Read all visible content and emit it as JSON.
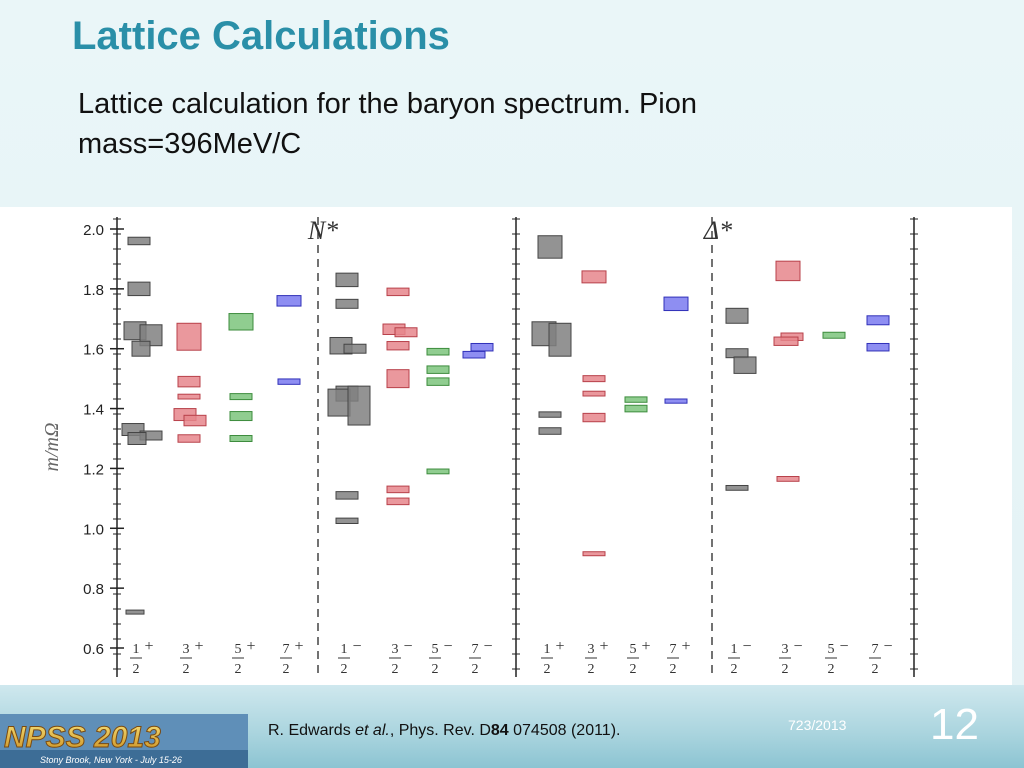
{
  "slide": {
    "title": "Lattice Calculations",
    "subtitle": "Lattice calculation for the baryon spectrum. Pion mass=396MeV/C",
    "citation_author": "R. Edwards ",
    "citation_etal": "et al.",
    "citation_journal": ", Phys. Rev. D",
    "citation_volume": "84",
    "citation_rest": " 074508 (2011).",
    "date": "723/2013",
    "number": "12",
    "logo_text": "NPSS 2013",
    "logo_sub": "Stony Brook, New York - July 15-26"
  },
  "chart_data": {
    "type": "bar",
    "ylabel": "m/mΩ",
    "ylim": [
      0.6,
      2.05
    ],
    "yticks": [
      "0.6",
      "0.8",
      "1.0",
      "1.2",
      "1.4",
      "1.6",
      "1.8",
      "2.0"
    ],
    "panel_labels": [
      "N*",
      "Δ*"
    ],
    "colors": {
      "gray": "#808080",
      "red": "#e6868c",
      "green": "#7cc47c",
      "blue": "#7a7af0"
    },
    "categories": [
      {
        "num": "1",
        "den": "2",
        "sign": "+"
      },
      {
        "num": "3",
        "den": "2",
        "sign": "+"
      },
      {
        "num": "5",
        "den": "2",
        "sign": "+"
      },
      {
        "num": "7",
        "den": "2",
        "sign": "+"
      },
      {
        "num": "1",
        "den": "2",
        "sign": "−"
      },
      {
        "num": "3",
        "den": "2",
        "sign": "−"
      },
      {
        "num": "5",
        "den": "2",
        "sign": "−"
      },
      {
        "num": "7",
        "den": "2",
        "sign": "−"
      },
      {
        "num": "1",
        "den": "2",
        "sign": "+"
      },
      {
        "num": "3",
        "den": "2",
        "sign": "+"
      },
      {
        "num": "5",
        "den": "2",
        "sign": "+"
      },
      {
        "num": "7",
        "den": "2",
        "sign": "+"
      },
      {
        "num": "1",
        "den": "2",
        "sign": "−"
      },
      {
        "num": "3",
        "den": "2",
        "sign": "−"
      },
      {
        "num": "5",
        "den": "2",
        "sign": "−"
      },
      {
        "num": "7",
        "den": "2",
        "sign": "−"
      }
    ],
    "levels": [
      {
        "c": 0,
        "y": 1.96,
        "h": 0.025,
        "w": 22,
        "dx": 0,
        "col": "gray"
      },
      {
        "c": 0,
        "y": 1.8,
        "h": 0.045,
        "w": 22,
        "dx": 0,
        "col": "gray"
      },
      {
        "c": 0,
        "y": 1.66,
        "h": 0.06,
        "w": 22,
        "dx": -4,
        "col": "gray"
      },
      {
        "c": 0,
        "y": 1.645,
        "h": 0.07,
        "w": 22,
        "dx": 12,
        "col": "gray"
      },
      {
        "c": 0,
        "y": 1.6,
        "h": 0.05,
        "w": 18,
        "dx": 2,
        "col": "gray"
      },
      {
        "c": 0,
        "y": 1.33,
        "h": 0.04,
        "w": 22,
        "dx": -6,
        "col": "gray"
      },
      {
        "c": 0,
        "y": 1.31,
        "h": 0.03,
        "w": 22,
        "dx": 12,
        "col": "gray"
      },
      {
        "c": 0,
        "y": 1.3,
        "h": 0.04,
        "w": 18,
        "dx": -2,
        "col": "gray"
      },
      {
        "c": 0,
        "y": 0.72,
        "h": 0.007,
        "w": 18,
        "dx": -4,
        "col": "gray"
      },
      {
        "c": 1,
        "y": 1.64,
        "h": 0.09,
        "w": 24,
        "dx": 0,
        "col": "red"
      },
      {
        "c": 1,
        "y": 1.49,
        "h": 0.035,
        "w": 22,
        "dx": 0,
        "col": "red"
      },
      {
        "c": 1,
        "y": 1.44,
        "h": 0.016,
        "w": 22,
        "dx": 0,
        "col": "red"
      },
      {
        "c": 1,
        "y": 1.38,
        "h": 0.04,
        "w": 22,
        "dx": -4,
        "col": "red"
      },
      {
        "c": 1,
        "y": 1.36,
        "h": 0.035,
        "w": 22,
        "dx": 6,
        "col": "red"
      },
      {
        "c": 1,
        "y": 1.3,
        "h": 0.025,
        "w": 22,
        "dx": 0,
        "col": "red"
      },
      {
        "c": 2,
        "y": 1.69,
        "h": 0.055,
        "w": 24,
        "dx": 0,
        "col": "green"
      },
      {
        "c": 2,
        "y": 1.44,
        "h": 0.02,
        "w": 22,
        "dx": 0,
        "col": "green"
      },
      {
        "c": 2,
        "y": 1.375,
        "h": 0.03,
        "w": 22,
        "dx": 0,
        "col": "green"
      },
      {
        "c": 2,
        "y": 1.3,
        "h": 0.02,
        "w": 22,
        "dx": 0,
        "col": "green"
      },
      {
        "c": 3,
        "y": 1.76,
        "h": 0.035,
        "w": 24,
        "dx": 0,
        "col": "blue"
      },
      {
        "c": 3,
        "y": 1.49,
        "h": 0.018,
        "w": 22,
        "dx": 0,
        "col": "blue"
      },
      {
        "c": 4,
        "y": 1.83,
        "h": 0.045,
        "w": 22,
        "dx": 0,
        "col": "gray"
      },
      {
        "c": 4,
        "y": 1.75,
        "h": 0.03,
        "w": 22,
        "dx": 0,
        "col": "gray"
      },
      {
        "c": 4,
        "y": 1.61,
        "h": 0.055,
        "w": 22,
        "dx": -6,
        "col": "gray"
      },
      {
        "c": 4,
        "y": 1.6,
        "h": 0.03,
        "w": 22,
        "dx": 8,
        "col": "gray"
      },
      {
        "c": 4,
        "y": 1.45,
        "h": 0.05,
        "w": 22,
        "dx": 0,
        "col": "gray"
      },
      {
        "c": 4,
        "y": 1.42,
        "h": 0.09,
        "w": 22,
        "dx": -8,
        "col": "gray"
      },
      {
        "c": 4,
        "y": 1.41,
        "h": 0.13,
        "w": 22,
        "dx": 12,
        "col": "gray"
      },
      {
        "c": 4,
        "y": 1.11,
        "h": 0.025,
        "w": 22,
        "dx": 0,
        "col": "gray"
      },
      {
        "c": 4,
        "y": 1.025,
        "h": 0.018,
        "w": 22,
        "dx": 0,
        "col": "gray"
      },
      {
        "c": 5,
        "y": 1.79,
        "h": 0.025,
        "w": 22,
        "dx": 0,
        "col": "red"
      },
      {
        "c": 5,
        "y": 1.665,
        "h": 0.035,
        "w": 22,
        "dx": -4,
        "col": "red"
      },
      {
        "c": 5,
        "y": 1.655,
        "h": 0.03,
        "w": 22,
        "dx": 8,
        "col": "red"
      },
      {
        "c": 5,
        "y": 1.61,
        "h": 0.028,
        "w": 22,
        "dx": 0,
        "col": "red"
      },
      {
        "c": 5,
        "y": 1.5,
        "h": 0.06,
        "w": 22,
        "dx": 0,
        "col": "red"
      },
      {
        "c": 5,
        "y": 1.13,
        "h": 0.022,
        "w": 22,
        "dx": 0,
        "col": "red"
      },
      {
        "c": 5,
        "y": 1.09,
        "h": 0.022,
        "w": 22,
        "dx": 0,
        "col": "red"
      },
      {
        "c": 6,
        "y": 1.59,
        "h": 0.022,
        "w": 22,
        "dx": 0,
        "col": "green"
      },
      {
        "c": 6,
        "y": 1.53,
        "h": 0.025,
        "w": 22,
        "dx": 0,
        "col": "green"
      },
      {
        "c": 6,
        "y": 1.49,
        "h": 0.025,
        "w": 22,
        "dx": 0,
        "col": "green"
      },
      {
        "c": 6,
        "y": 1.19,
        "h": 0.016,
        "w": 22,
        "dx": 0,
        "col": "green"
      },
      {
        "c": 7,
        "y": 1.605,
        "h": 0.025,
        "w": 22,
        "dx": 4,
        "col": "blue"
      },
      {
        "c": 7,
        "y": 1.58,
        "h": 0.022,
        "w": 22,
        "dx": -4,
        "col": "blue"
      },
      {
        "c": 8,
        "y": 1.94,
        "h": 0.075,
        "w": 24,
        "dx": 0,
        "col": "gray"
      },
      {
        "c": 8,
        "y": 1.65,
        "h": 0.08,
        "w": 24,
        "dx": -6,
        "col": "gray"
      },
      {
        "c": 8,
        "y": 1.63,
        "h": 0.11,
        "w": 22,
        "dx": 10,
        "col": "gray"
      },
      {
        "c": 8,
        "y": 1.38,
        "h": 0.018,
        "w": 22,
        "dx": 0,
        "col": "gray"
      },
      {
        "c": 8,
        "y": 1.325,
        "h": 0.022,
        "w": 22,
        "dx": 0,
        "col": "gray"
      },
      {
        "c": 9,
        "y": 1.84,
        "h": 0.04,
        "w": 24,
        "dx": 0,
        "col": "red"
      },
      {
        "c": 9,
        "y": 1.5,
        "h": 0.02,
        "w": 22,
        "dx": 0,
        "col": "red"
      },
      {
        "c": 9,
        "y": 1.45,
        "h": 0.016,
        "w": 22,
        "dx": 0,
        "col": "red"
      },
      {
        "c": 9,
        "y": 1.37,
        "h": 0.028,
        "w": 22,
        "dx": 0,
        "col": "red"
      },
      {
        "c": 9,
        "y": 0.915,
        "h": 0.008,
        "w": 22,
        "dx": 0,
        "col": "red"
      },
      {
        "c": 10,
        "y": 1.43,
        "h": 0.018,
        "w": 22,
        "dx": 0,
        "col": "green"
      },
      {
        "c": 10,
        "y": 1.4,
        "h": 0.022,
        "w": 22,
        "dx": 0,
        "col": "green"
      },
      {
        "c": 11,
        "y": 1.75,
        "h": 0.045,
        "w": 24,
        "dx": 0,
        "col": "blue"
      },
      {
        "c": 11,
        "y": 1.425,
        "h": 0.014,
        "w": 22,
        "dx": 0,
        "col": "blue"
      },
      {
        "c": 12,
        "y": 1.71,
        "h": 0.05,
        "w": 22,
        "dx": 0,
        "col": "gray"
      },
      {
        "c": 12,
        "y": 1.585,
        "h": 0.03,
        "w": 22,
        "dx": 0,
        "col": "gray"
      },
      {
        "c": 12,
        "y": 1.545,
        "h": 0.055,
        "w": 22,
        "dx": 8,
        "col": "gray"
      },
      {
        "c": 12,
        "y": 1.135,
        "h": 0.016,
        "w": 22,
        "dx": 0,
        "col": "gray"
      },
      {
        "c": 13,
        "y": 1.86,
        "h": 0.065,
        "w": 24,
        "dx": 0,
        "col": "red"
      },
      {
        "c": 13,
        "y": 1.64,
        "h": 0.025,
        "w": 22,
        "dx": 4,
        "col": "red"
      },
      {
        "c": 13,
        "y": 1.625,
        "h": 0.028,
        "w": 24,
        "dx": -2,
        "col": "red"
      },
      {
        "c": 13,
        "y": 1.165,
        "h": 0.016,
        "w": 22,
        "dx": 0,
        "col": "red"
      },
      {
        "c": 14,
        "y": 1.645,
        "h": 0.02,
        "w": 22,
        "dx": 0,
        "col": "green"
      },
      {
        "c": 15,
        "y": 1.695,
        "h": 0.03,
        "w": 22,
        "dx": 0,
        "col": "blue"
      },
      {
        "c": 15,
        "y": 1.605,
        "h": 0.025,
        "w": 22,
        "dx": 0,
        "col": "blue"
      }
    ]
  }
}
